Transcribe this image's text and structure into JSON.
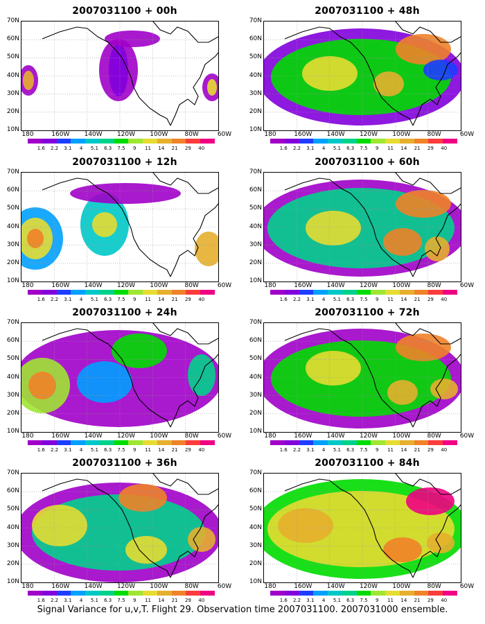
{
  "caption": "Signal Variance for u,v,T. Flight 29. Observation time 2007031100. 2007031000 ensemble.",
  "lat_labels": [
    "70N",
    "60N",
    "50N",
    "40N",
    "30N",
    "20N",
    "10N"
  ],
  "lon_labels": [
    "180",
    "160W",
    "140W",
    "120W",
    "100W",
    "80W",
    "60W"
  ],
  "colorbar": {
    "labels": [
      "1.6",
      "2.2",
      "3.1",
      "4",
      "5.1",
      "6.3",
      "7.5",
      "9",
      "11",
      "14",
      "21",
      "29",
      "40"
    ],
    "colors": [
      "#a000c8",
      "#8200dc",
      "#1e3cff",
      "#00a0ff",
      "#00c8c8",
      "#00d28c",
      "#00dc00",
      "#a0e632",
      "#e6dc32",
      "#e6af2d",
      "#f08228",
      "#fa3c3c",
      "#f00082"
    ]
  },
  "panels": [
    {
      "title": "2007031100 + 00h"
    },
    {
      "title": "2007031100 + 48h"
    },
    {
      "title": "2007031100 + 12h"
    },
    {
      "title": "2007031100 + 60h"
    },
    {
      "title": "2007031100 + 24h"
    },
    {
      "title": "2007031100 + 72h"
    },
    {
      "title": "2007031100 + 36h"
    },
    {
      "title": "2007031100 + 84h"
    }
  ]
}
